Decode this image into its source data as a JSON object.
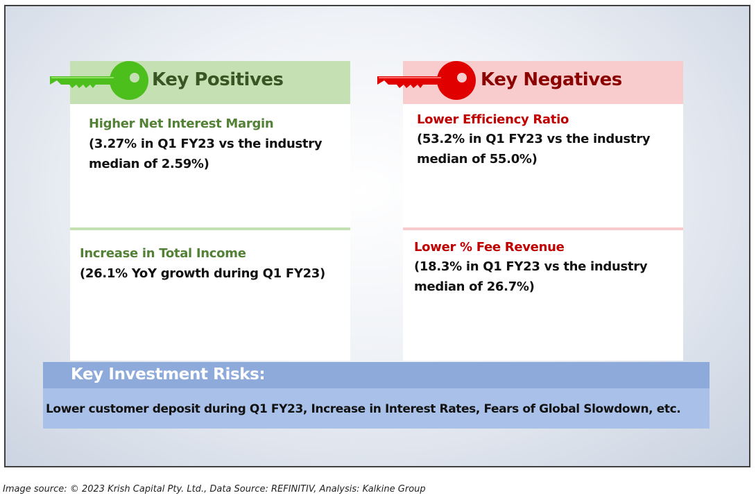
{
  "positives": {
    "title": "Key Positives",
    "icon": "green-key-icon",
    "color": "#4cbf1c",
    "items": [
      {
        "title": "Higher Net Interest Margin",
        "detail_line1": "(3.27% in Q1 FY23 vs the industry",
        "detail_line2": "median of 2.59%)"
      },
      {
        "title": "Increase in Total Income",
        "detail_line1": "(26.1% YoY growth during Q1 FY23)",
        "detail_line2": ""
      }
    ]
  },
  "negatives": {
    "title": "Key Negatives",
    "icon": "red-key-icon",
    "color": "#e00000",
    "items": [
      {
        "title": "Lower Efficiency Ratio",
        "detail_line1": "(53.2% in Q1 FY23 vs the industry",
        "detail_line2": "median of 55.0%)"
      },
      {
        "title": "Lower % Fee Revenue",
        "detail_line1": "(18.3% in Q1 FY23 vs the industry",
        "detail_line2": "median of 26.7%)"
      }
    ]
  },
  "risks": {
    "title": "Key Investment Risks:",
    "text": "Lower customer deposit during Q1 FY23, Increase in Interest Rates, Fears of Global Slowdown, etc."
  },
  "source": "Image source: © 2023 Krish Capital Pty. Ltd., Data Source: REFINITIV, Analysis: Kalkine Group"
}
